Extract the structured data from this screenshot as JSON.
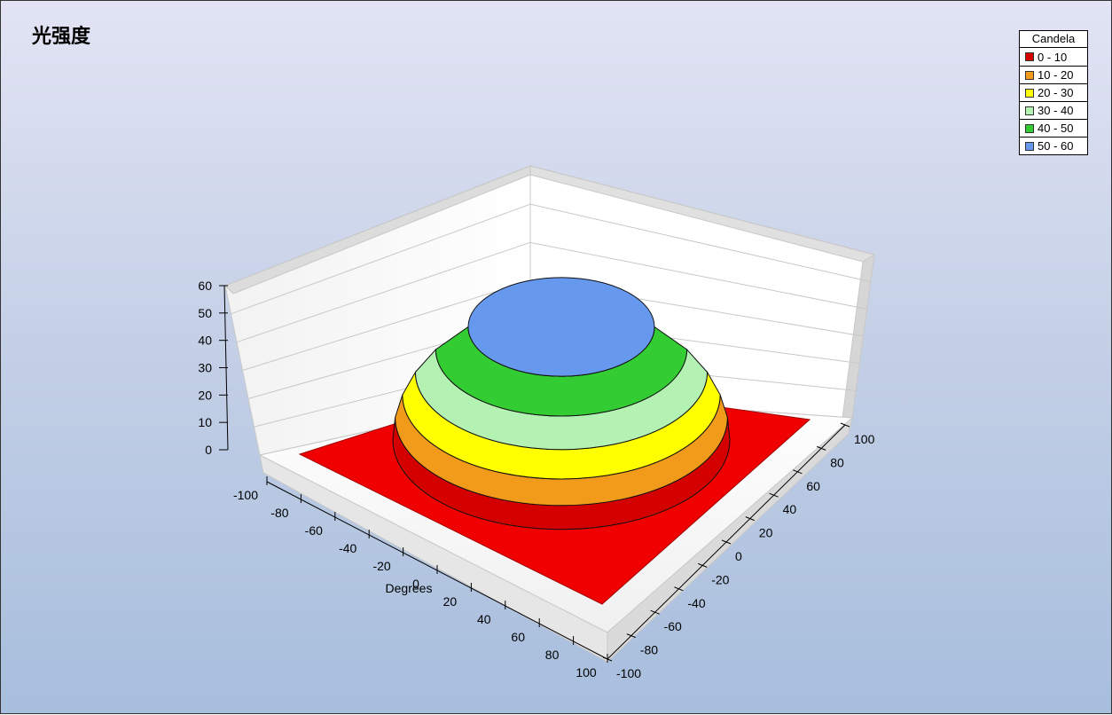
{
  "chart_data": {
    "type": "surface3d",
    "title": "光强度",
    "xlabel": "Degrees",
    "ylabel": "",
    "zlabel": "",
    "x_ticks": [
      "-100",
      "-80",
      "-60",
      "-40",
      "-20",
      "0",
      "20",
      "40",
      "60",
      "80",
      "100"
    ],
    "y_ticks": [
      "-100",
      "-80",
      "-60",
      "-40",
      "-20",
      "0",
      "20",
      "40",
      "60",
      "80",
      "100"
    ],
    "z_ticks": [
      "0",
      "10",
      "20",
      "30",
      "40",
      "50",
      "60"
    ],
    "xlim": [
      -100,
      100
    ],
    "ylim": [
      -100,
      100
    ],
    "zlim": [
      0,
      60
    ],
    "grid": true,
    "legend": {
      "title": "Candela",
      "position": "top-right",
      "items": [
        {
          "label": "0 - 10",
          "color": "#d40000"
        },
        {
          "label": "10 - 20",
          "color": "#f29a1a"
        },
        {
          "label": "20 - 30",
          "color": "#ffff00"
        },
        {
          "label": "30 - 40",
          "color": "#b4f2b4"
        },
        {
          "label": "40 - 50",
          "color": "#33cc33"
        },
        {
          "label": "50 - 60",
          "color": "#6699ee"
        }
      ]
    },
    "surface": {
      "shape": "dome",
      "peak_value": 60,
      "base_value": 0,
      "contour_levels": [
        10,
        20,
        30,
        40,
        50
      ]
    }
  }
}
